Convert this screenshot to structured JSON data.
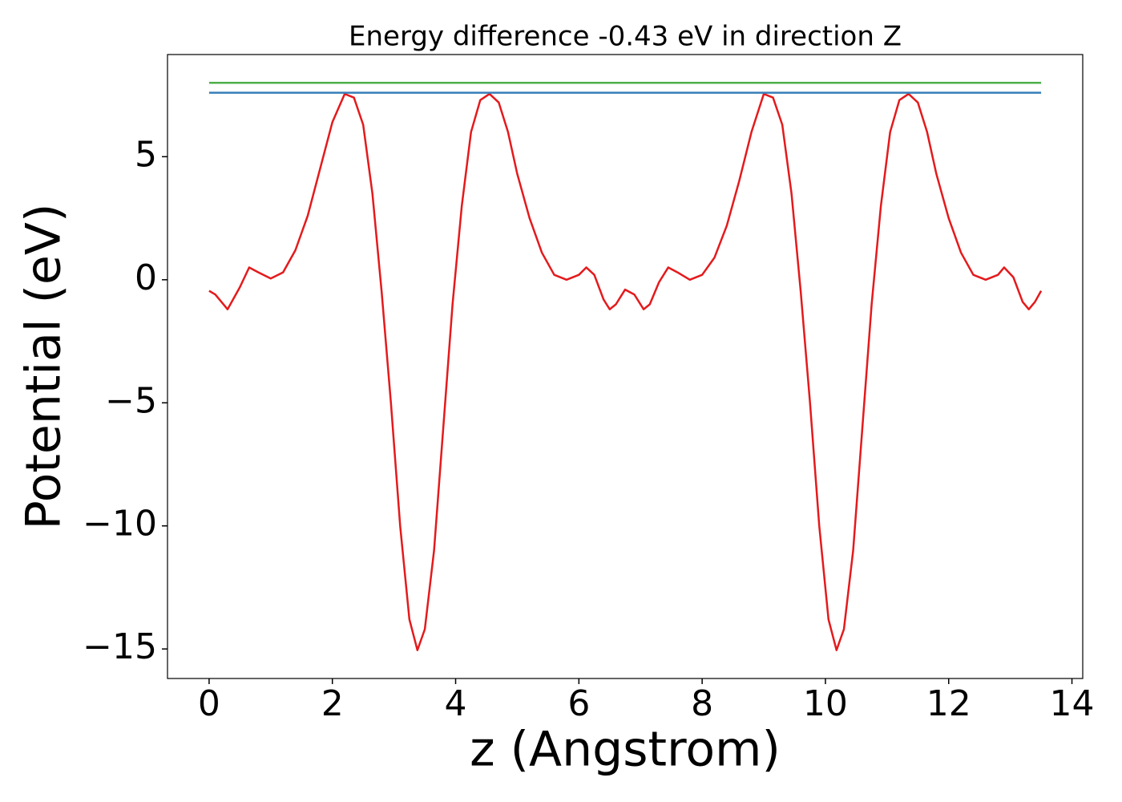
{
  "chart_data": {
    "type": "line",
    "title": "Energy difference -0.43 eV in direction Z",
    "xlabel": "z (Angstrom)",
    "ylabel": "Potential (eV)",
    "xlim": [
      -0.675,
      14.175
    ],
    "ylim": [
      -16.2,
      9.15
    ],
    "xticks": [
      0,
      2,
      4,
      6,
      8,
      10,
      12,
      14
    ],
    "yticks": [
      {
        "value": -15,
        "label": "−15"
      },
      {
        "value": -10,
        "label": "−10"
      },
      {
        "value": -5,
        "label": "−5"
      },
      0,
      5
    ],
    "series": [
      {
        "color": "#e41a1c",
        "x": [
          0,
          0.1,
          0.3,
          0.5,
          0.65,
          0.8,
          1.0,
          1.2,
          1.4,
          1.6,
          1.8,
          2.0,
          2.2,
          2.35,
          2.5,
          2.65,
          2.8,
          2.95,
          3.1,
          3.25,
          3.38,
          3.5,
          3.65,
          3.8,
          3.95,
          4.1,
          4.25,
          4.4,
          4.55,
          4.7,
          4.85,
          5.0,
          5.2,
          5.4,
          5.6,
          5.8,
          6.0,
          6.12,
          6.25,
          6.4,
          6.5,
          6.6,
          6.75,
          6.9,
          7.05,
          7.15,
          7.3,
          7.45,
          7.6,
          7.8,
          8.0,
          8.2,
          8.4,
          8.6,
          8.8,
          9.0,
          9.15,
          9.3,
          9.45,
          9.6,
          9.75,
          9.9,
          10.05,
          10.18,
          10.3,
          10.45,
          10.6,
          10.75,
          10.9,
          11.05,
          11.2,
          11.35,
          11.5,
          11.65,
          11.8,
          12.0,
          12.2,
          12.4,
          12.6,
          12.8,
          12.9,
          13.05,
          13.2,
          13.3,
          13.4,
          13.5
        ],
        "values": [
          -0.45,
          -0.6,
          -1.2,
          -0.3,
          0.5,
          0.3,
          0.05,
          0.3,
          1.2,
          2.6,
          4.5,
          6.4,
          7.55,
          7.4,
          6.3,
          3.5,
          -0.5,
          -5,
          -10,
          -13.8,
          -15.05,
          -14.2,
          -11,
          -6,
          -1,
          3,
          6,
          7.3,
          7.55,
          7.2,
          6.0,
          4.3,
          2.5,
          1.1,
          0.2,
          0.0,
          0.2,
          0.5,
          0.2,
          -0.8,
          -1.2,
          -1.0,
          -0.4,
          -0.6,
          -1.2,
          -1.0,
          -0.1,
          0.5,
          0.3,
          0.0,
          0.2,
          0.9,
          2.2,
          4.0,
          6.0,
          7.55,
          7.4,
          6.3,
          3.5,
          -0.5,
          -5,
          -10,
          -13.8,
          -15.05,
          -14.2,
          -11,
          -6,
          -1,
          3,
          6,
          7.3,
          7.55,
          7.2,
          6.0,
          4.3,
          2.5,
          1.1,
          0.2,
          0.0,
          0.2,
          0.5,
          0.1,
          -0.9,
          -1.2,
          -0.9,
          -0.45
        ]
      },
      {
        "color": "#4daf4a",
        "x": [
          0,
          13.5
        ],
        "values": [
          8.0,
          8.0
        ]
      },
      {
        "color": "#377eb8",
        "x": [
          0,
          13.5
        ],
        "values": [
          7.6,
          7.6
        ]
      }
    ]
  }
}
